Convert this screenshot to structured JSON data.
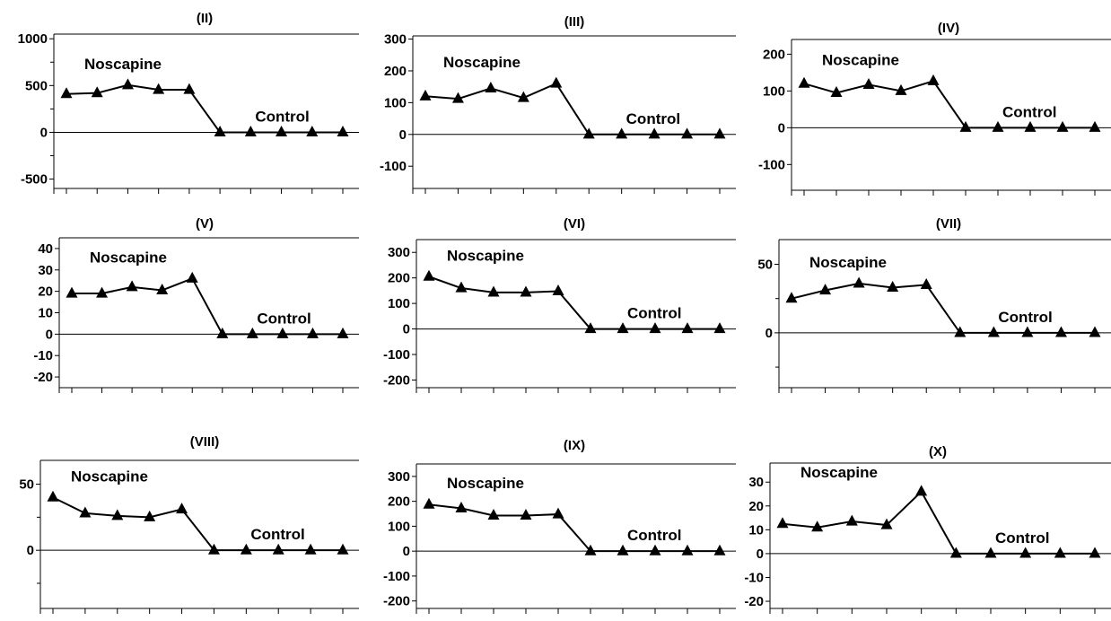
{
  "chart_data": [
    {
      "type": "line",
      "title": "(II)",
      "ylim": [
        -600,
        1050
      ],
      "yticks": [
        {
          "v": 1000,
          "label": "1000"
        },
        {
          "v": 500,
          "label": "500"
        },
        {
          "v": 0,
          "label": "0"
        },
        {
          "v": -500,
          "label": "-500"
        }
      ],
      "yminor": [
        750,
        250,
        -250
      ],
      "series": [
        {
          "name": "Noscapine",
          "values": [
            410,
            420,
            505,
            455,
            455
          ]
        },
        {
          "name": "Control",
          "values": [
            0,
            0,
            0,
            0,
            0
          ]
        }
      ]
    },
    {
      "type": "line",
      "title": "(III)",
      "ylim": [
        -170,
        310
      ],
      "yticks": [
        {
          "v": 300,
          "label": "300"
        },
        {
          "v": 200,
          "label": "200"
        },
        {
          "v": 100,
          "label": "100"
        },
        {
          "v": 0,
          "label": "0"
        },
        {
          "v": -100,
          "label": "-100"
        }
      ],
      "yminor": [],
      "series": [
        {
          "name": "Noscapine",
          "values": [
            120,
            112,
            145,
            115,
            160
          ]
        },
        {
          "name": "Control",
          "values": [
            0,
            0,
            0,
            0,
            0
          ]
        }
      ]
    },
    {
      "type": "line",
      "title": "(IV)",
      "ylim": [
        -170,
        240
      ],
      "yticks": [
        {
          "v": 200,
          "label": "200"
        },
        {
          "v": 100,
          "label": "100"
        },
        {
          "v": 0,
          "label": "0"
        },
        {
          "v": -100,
          "label": "-100"
        }
      ],
      "yminor": [],
      "series": [
        {
          "name": "Noscapine",
          "values": [
            120,
            95,
            117,
            100,
            127
          ]
        },
        {
          "name": "Control",
          "values": [
            0,
            0,
            0,
            0,
            0
          ]
        }
      ]
    },
    {
      "type": "line",
      "title": "(V)",
      "ylim": [
        -25,
        45
      ],
      "yticks": [
        {
          "v": 40,
          "label": "40"
        },
        {
          "v": 30,
          "label": "30"
        },
        {
          "v": 20,
          "label": "20"
        },
        {
          "v": 10,
          "label": "10"
        },
        {
          "v": 0,
          "label": "0"
        },
        {
          "v": -10,
          "label": "-10"
        },
        {
          "v": -20,
          "label": "-20"
        }
      ],
      "yminor": [],
      "series": [
        {
          "name": "Noscapine",
          "values": [
            19,
            19,
            22,
            20.5,
            26
          ]
        },
        {
          "name": "Control",
          "values": [
            0,
            0,
            0,
            0,
            0
          ]
        }
      ]
    },
    {
      "type": "line",
      "title": "(VI)",
      "ylim": [
        -230,
        350
      ],
      "yticks": [
        {
          "v": 300,
          "label": "300"
        },
        {
          "v": 200,
          "label": "200"
        },
        {
          "v": 100,
          "label": "100"
        },
        {
          "v": 0,
          "label": "0"
        },
        {
          "v": -100,
          "label": "-100"
        },
        {
          "v": -200,
          "label": "-200"
        }
      ],
      "yminor": [],
      "series": [
        {
          "name": "Noscapine",
          "values": [
            205,
            160,
            143,
            143,
            148
          ]
        },
        {
          "name": "Control",
          "values": [
            0,
            0,
            0,
            0,
            0
          ]
        }
      ]
    },
    {
      "type": "line",
      "title": "(VII)",
      "ylim": [
        -40,
        68
      ],
      "yticks": [
        {
          "v": 50,
          "label": "50"
        },
        {
          "v": 0,
          "label": "0"
        }
      ],
      "yminor": [
        25,
        -25
      ],
      "series": [
        {
          "name": "Noscapine",
          "values": [
            25,
            31,
            36,
            33,
            35
          ]
        },
        {
          "name": "Control",
          "values": [
            0,
            0,
            0,
            0,
            0
          ]
        }
      ]
    },
    {
      "type": "line",
      "title": "(VIII)",
      "ylim": [
        -44,
        68
      ],
      "yticks": [
        {
          "v": 50,
          "label": "50"
        },
        {
          "v": 0,
          "label": "0"
        }
      ],
      "yminor": [
        25,
        -25
      ],
      "series": [
        {
          "name": "Noscapine",
          "values": [
            40,
            28,
            26,
            25,
            31
          ]
        },
        {
          "name": "Control",
          "values": [
            0,
            0,
            0,
            0,
            0
          ]
        }
      ]
    },
    {
      "type": "line",
      "title": "(IX)",
      "ylim": [
        -230,
        350
      ],
      "yticks": [
        {
          "v": 300,
          "label": "300"
        },
        {
          "v": 200,
          "label": "200"
        },
        {
          "v": 100,
          "label": "100"
        },
        {
          "v": 0,
          "label": "0"
        },
        {
          "v": -100,
          "label": "-100"
        },
        {
          "v": -200,
          "label": "-200"
        }
      ],
      "yminor": [],
      "series": [
        {
          "name": "Noscapine",
          "values": [
            187,
            172,
            143,
            143,
            148
          ]
        },
        {
          "name": "Control",
          "values": [
            0,
            0,
            0,
            0,
            0
          ]
        }
      ]
    },
    {
      "type": "line",
      "title": "(X)",
      "ylim": [
        -23,
        38
      ],
      "yticks": [
        {
          "v": 30,
          "label": "30"
        },
        {
          "v": 20,
          "label": "20"
        },
        {
          "v": 10,
          "label": "10"
        },
        {
          "v": 0,
          "label": "0"
        },
        {
          "v": -10,
          "label": "-10"
        },
        {
          "v": -20,
          "label": "-20"
        }
      ],
      "yminor": [],
      "series": [
        {
          "name": "Noscapine",
          "values": [
            12.5,
            11,
            13.5,
            12,
            26
          ]
        },
        {
          "name": "Control",
          "values": [
            0,
            0,
            0,
            0,
            0
          ]
        }
      ]
    }
  ]
}
